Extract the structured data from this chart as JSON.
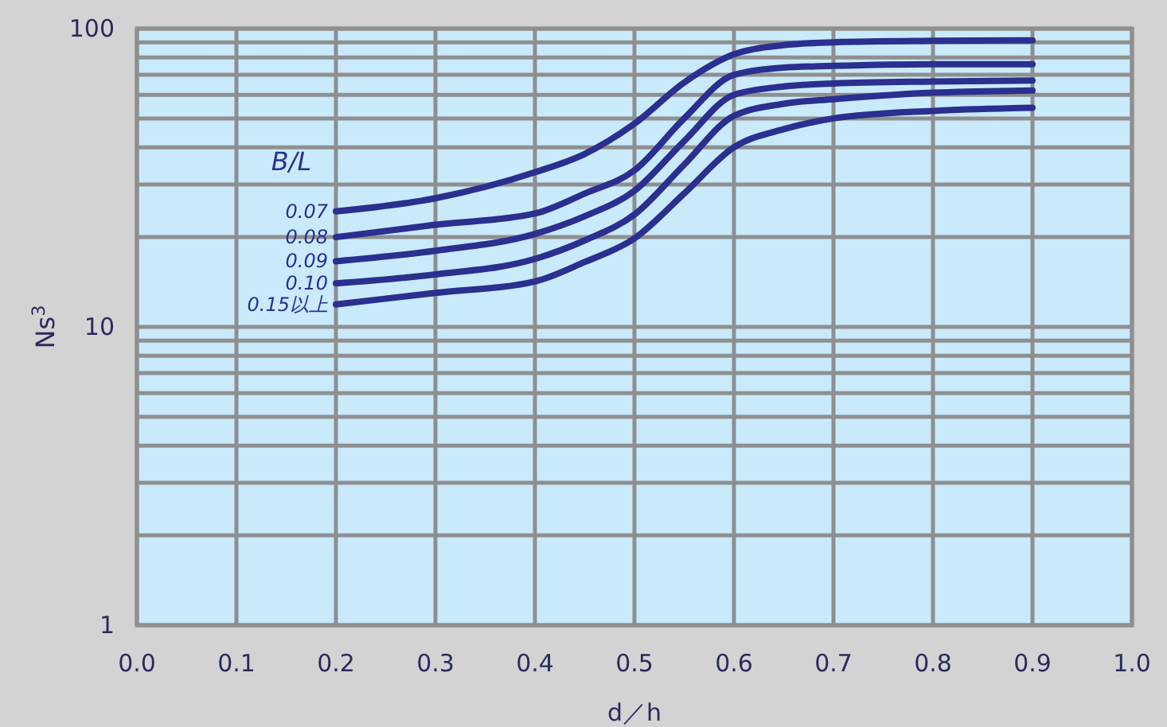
{
  "chart_data": {
    "type": "line",
    "xlabel": "d／h",
    "ylabel": "Ns$^{3}$",
    "legend_title": "B/L",
    "log": true,
    "grid": true,
    "marker": "none",
    "line_style": "solid",
    "x": [
      0.2,
      0.3,
      0.4,
      0.45,
      0.5,
      0.55,
      0.6,
      0.65,
      0.7,
      0.8,
      0.9
    ],
    "xlim": [
      0,
      1
    ],
    "xticks": [
      {
        "value": 0,
        "label": "0.0"
      },
      0.1,
      0.2,
      0.3,
      0.4,
      0.5,
      0.6,
      0.7,
      0.8,
      0.9,
      {
        "value": 1,
        "label": "1.0"
      }
    ],
    "ylim": [
      1,
      100
    ],
    "yticks": [
      1,
      {
        "value": 2,
        "label": null
      },
      {
        "value": 3,
        "label": null
      },
      {
        "value": 4,
        "label": null
      },
      {
        "value": 5,
        "label": null
      },
      {
        "value": 6,
        "label": null
      },
      {
        "value": 7,
        "label": null
      },
      {
        "value": 8,
        "label": null
      },
      {
        "value": 9,
        "label": null
      },
      10,
      {
        "value": 20,
        "label": null
      },
      {
        "value": 30,
        "label": null
      },
      {
        "value": 40,
        "label": null
      },
      {
        "value": 50,
        "label": null
      },
      {
        "value": 60,
        "label": null
      },
      {
        "value": 70,
        "label": null
      },
      {
        "value": 80,
        "label": null
      },
      {
        "value": 90,
        "label": null
      },
      100
    ],
    "series": [
      {
        "name": "0.07",
        "color": "#2b2f8f",
        "values": [
          24.4,
          27,
          33,
          38,
          48,
          66,
          82,
          88,
          90,
          91,
          91.4
        ]
      },
      {
        "name": "0.08",
        "color": "#2b2f8f",
        "values": [
          20,
          22,
          24,
          28,
          33.5,
          50,
          70,
          74,
          75,
          76,
          76
        ]
      },
      {
        "name": "0.09",
        "color": "#2b2f8f",
        "values": [
          16.6,
          18,
          20.5,
          23.5,
          28.6,
          42,
          60,
          64,
          65.5,
          66.5,
          67
        ]
      },
      {
        "name": "0.10",
        "color": "#2b2f8f",
        "values": [
          14,
          15,
          16.9,
          19.5,
          23.8,
          35,
          51,
          56,
          58,
          61,
          62
        ]
      },
      {
        "name": "0.15以上",
        "color": "#2b2f8f",
        "values": [
          11.9,
          13,
          14.2,
          16.5,
          19.8,
          28,
          40,
          46,
          50,
          53,
          54.3
        ]
      }
    ]
  }
}
